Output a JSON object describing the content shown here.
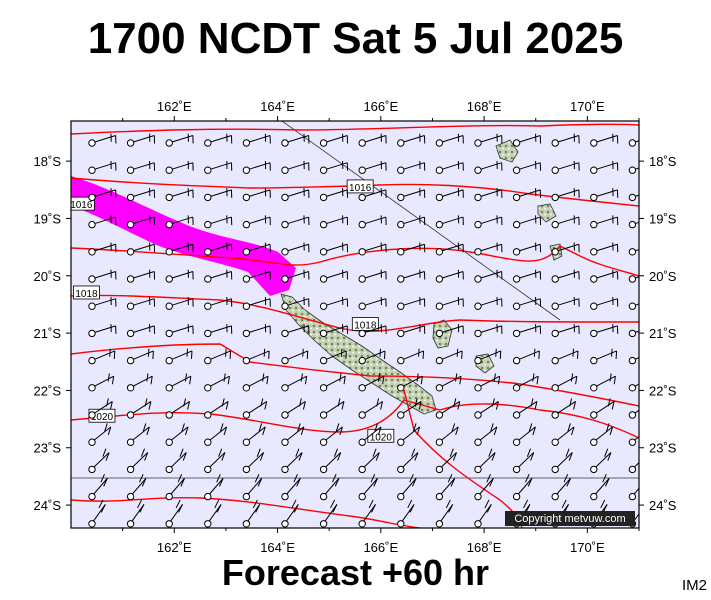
{
  "title": "1700 NCDT Sat 5 Jul 2025",
  "footer": "Forecast +60 hr",
  "product_code": "IM2",
  "copyright": "Copyright metvuw.com",
  "map": {
    "lon_range": [
      160,
      171
    ],
    "lat_range": [
      -24.4,
      -17.3
    ],
    "background_color": "#e8e8ff",
    "isobar_color": "#ff0000",
    "rain_color": "#ff00ff",
    "lon_labels": [
      "162˚E",
      "164˚E",
      "166˚E",
      "168˚E",
      "170˚E"
    ],
    "lat_labels": [
      "18˚S",
      "19˚S",
      "20˚S",
      "21˚S",
      "22˚S",
      "23˚S",
      "24˚S"
    ],
    "isobars": [
      {
        "label": "1016",
        "label_at": [
          165.6,
          -18.45
        ]
      },
      {
        "label": "1016",
        "label_at": [
          160.2,
          -18.75
        ]
      },
      {
        "label": "1018",
        "label_at": [
          160.3,
          -20.3
        ]
      },
      {
        "label": "1018",
        "label_at": [
          165.7,
          -20.85
        ]
      },
      {
        "label": "1020",
        "label_at": [
          160.6,
          -22.45
        ]
      },
      {
        "label": "1020",
        "label_at": [
          166.0,
          -22.8
        ]
      }
    ],
    "wind_barbs": "southeasterly trade winds, about 15-25 kt across the domain"
  }
}
